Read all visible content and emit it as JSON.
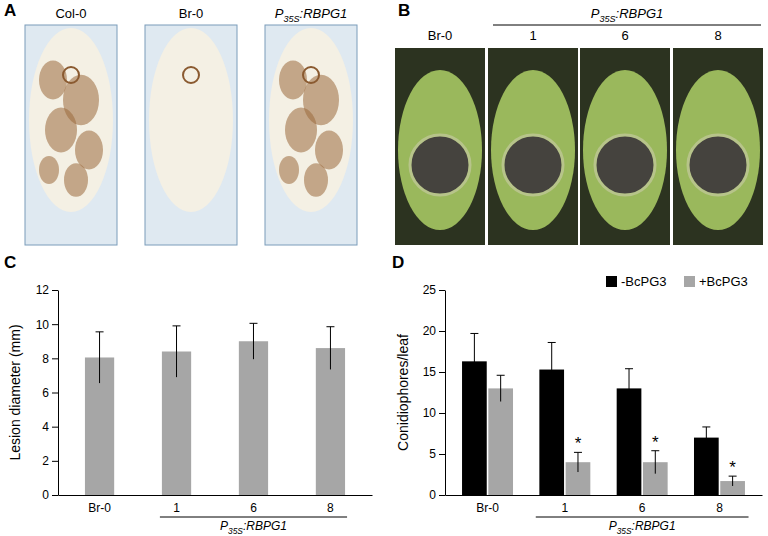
{
  "panels": {
    "A": {
      "label": "A",
      "photos": [
        [
          "Col-0"
        ],
        [
          "Br-0"
        ],
        [
          "P",
          "35S",
          ":RBPG1"
        ]
      ]
    },
    "B": {
      "label": "B",
      "photos": [
        "Br-0",
        "1",
        "6",
        "8"
      ],
      "group_label": [
        "P",
        "35S",
        ":RBPG1"
      ]
    }
  },
  "chart_data": [
    {
      "type": "bar",
      "panel": "C",
      "ylabel": "Lesion diameter (mm)",
      "categories": [
        "Br-0",
        "1",
        "6",
        "8"
      ],
      "group_label": [
        "P",
        "35S",
        ":RBPG1"
      ],
      "values": [
        8.05,
        8.4,
        9.0,
        8.6
      ],
      "errors": [
        1.5,
        1.5,
        1.05,
        1.25
      ],
      "color": "#a6a6a6",
      "ylim": [
        0,
        12
      ],
      "yticks": [
        0,
        2,
        4,
        6,
        8,
        10,
        12
      ]
    },
    {
      "type": "bar",
      "panel": "D",
      "ylabel": "Conidiophores/leaf",
      "categories": [
        "Br-0",
        "1",
        "6",
        "8"
      ],
      "group_label": [
        "P",
        "35S",
        ":RBPG1"
      ],
      "series": [
        {
          "name": "-BcPG3",
          "color": "#000000",
          "values": [
            16.3,
            15.3,
            13.0,
            7.0
          ],
          "errors": [
            3.4,
            3.3,
            2.4,
            1.3
          ]
        },
        {
          "name": "+BcPG3",
          "color": "#a6a6a6",
          "values": [
            13.0,
            4.0,
            4.0,
            1.7
          ],
          "errors": [
            1.6,
            1.2,
            1.4,
            0.6
          ],
          "labels": [
            null,
            "*",
            "*",
            "*"
          ]
        }
      ],
      "legend": "top-right",
      "ylim": [
        0,
        25
      ],
      "yticks": [
        0,
        5,
        10,
        15,
        20,
        25
      ]
    }
  ]
}
